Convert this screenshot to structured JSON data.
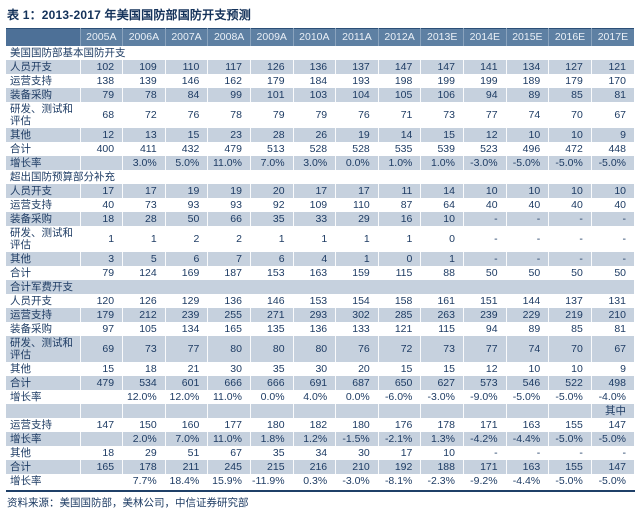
{
  "title": "表 1：2013-2017 年美国国防部国防开支预测",
  "source_note": "资料来源：美国国防部，美林公司，中信证券研究部",
  "colors": {
    "header_bg": "#5e80a3",
    "header_corner_bg": "#4d7097",
    "header_text": "#e9eff6",
    "stripe_bg": "#c6d1de",
    "body_text": "#1e3c64",
    "title_text": "#14325a",
    "rule": "#1f4068"
  },
  "table": {
    "columns": [
      "2005A",
      "2006A",
      "2007A",
      "2008A",
      "2009A",
      "2010A",
      "2011A",
      "2012A",
      "2013E",
      "2014E",
      "2015E",
      "2016E",
      "2017E"
    ],
    "rows": [
      {
        "kind": "section",
        "shaded": false,
        "label": "美国国防部基本国防开支",
        "values": []
      },
      {
        "kind": "data",
        "shaded": true,
        "label": "人员开支",
        "values": [
          "102",
          "109",
          "110",
          "117",
          "126",
          "136",
          "137",
          "147",
          "147",
          "141",
          "134",
          "127",
          "121"
        ]
      },
      {
        "kind": "data",
        "shaded": false,
        "label": "运营支持",
        "values": [
          "138",
          "139",
          "146",
          "162",
          "179",
          "184",
          "193",
          "198",
          "199",
          "199",
          "189",
          "179",
          "170"
        ]
      },
      {
        "kind": "data",
        "shaded": true,
        "label": "装备采购",
        "values": [
          "79",
          "78",
          "84",
          "99",
          "101",
          "103",
          "104",
          "105",
          "106",
          "94",
          "89",
          "85",
          "81"
        ]
      },
      {
        "kind": "data",
        "shaded": false,
        "label": "研发、测试和评估",
        "values": [
          "68",
          "72",
          "76",
          "78",
          "79",
          "79",
          "76",
          "71",
          "73",
          "77",
          "74",
          "70",
          "67"
        ]
      },
      {
        "kind": "data",
        "shaded": true,
        "label": "其他",
        "values": [
          "12",
          "13",
          "15",
          "23",
          "28",
          "26",
          "19",
          "14",
          "15",
          "12",
          "10",
          "10",
          "9"
        ]
      },
      {
        "kind": "data",
        "shaded": false,
        "label": "合计",
        "values": [
          "400",
          "411",
          "432",
          "479",
          "513",
          "528",
          "528",
          "535",
          "539",
          "523",
          "496",
          "472",
          "448"
        ]
      },
      {
        "kind": "data",
        "shaded": true,
        "label": "增长率",
        "values": [
          "",
          "3.0%",
          "5.0%",
          "11.0%",
          "7.0%",
          "3.0%",
          "0.0%",
          "1.0%",
          "1.0%",
          "-3.0%",
          "-5.0%",
          "-5.0%",
          "-5.0%"
        ]
      },
      {
        "kind": "section",
        "shaded": false,
        "label": "超出国防预算部分补充",
        "values": []
      },
      {
        "kind": "data",
        "shaded": true,
        "label": "人员开支",
        "values": [
          "17",
          "17",
          "19",
          "19",
          "20",
          "17",
          "17",
          "11",
          "14",
          "10",
          "10",
          "10",
          "10"
        ]
      },
      {
        "kind": "data",
        "shaded": false,
        "label": "运营支持",
        "values": [
          "40",
          "73",
          "93",
          "93",
          "92",
          "109",
          "110",
          "87",
          "64",
          "40",
          "40",
          "40",
          "40"
        ]
      },
      {
        "kind": "data",
        "shaded": true,
        "label": "装备采购",
        "values": [
          "18",
          "28",
          "50",
          "66",
          "35",
          "33",
          "29",
          "16",
          "10",
          "-",
          "-",
          "-",
          "-"
        ]
      },
      {
        "kind": "data",
        "shaded": false,
        "label": "研发、测试和评估",
        "values": [
          "1",
          "1",
          "2",
          "2",
          "1",
          "1",
          "1",
          "1",
          "0",
          "-",
          "-",
          "-",
          "-"
        ]
      },
      {
        "kind": "data",
        "shaded": true,
        "label": "其他",
        "values": [
          "3",
          "5",
          "6",
          "7",
          "6",
          "4",
          "1",
          "0",
          "1",
          "-",
          "-",
          "-",
          "-"
        ]
      },
      {
        "kind": "data",
        "shaded": false,
        "label": "合计",
        "values": [
          "79",
          "124",
          "169",
          "187",
          "153",
          "163",
          "159",
          "115",
          "88",
          "50",
          "50",
          "50",
          "50"
        ]
      },
      {
        "kind": "section",
        "shaded": true,
        "label": "合计军费开支",
        "values": []
      },
      {
        "kind": "data",
        "shaded": false,
        "label": "人员开支",
        "values": [
          "120",
          "126",
          "129",
          "136",
          "146",
          "153",
          "154",
          "158",
          "161",
          "151",
          "144",
          "137",
          "131"
        ]
      },
      {
        "kind": "data",
        "shaded": true,
        "label": "运营支持",
        "values": [
          "179",
          "212",
          "239",
          "255",
          "271",
          "293",
          "302",
          "285",
          "263",
          "239",
          "229",
          "219",
          "210"
        ]
      },
      {
        "kind": "data",
        "shaded": false,
        "label": "装备采购",
        "values": [
          "97",
          "105",
          "134",
          "165",
          "135",
          "136",
          "133",
          "121",
          "115",
          "94",
          "89",
          "85",
          "81"
        ]
      },
      {
        "kind": "data",
        "shaded": true,
        "label": "研发、测试和评估",
        "values": [
          "69",
          "73",
          "77",
          "80",
          "80",
          "80",
          "76",
          "72",
          "73",
          "77",
          "74",
          "70",
          "67"
        ]
      },
      {
        "kind": "data",
        "shaded": false,
        "label": "其他",
        "values": [
          "15",
          "18",
          "21",
          "30",
          "35",
          "30",
          "20",
          "15",
          "15",
          "12",
          "10",
          "10",
          "9"
        ]
      },
      {
        "kind": "data",
        "shaded": true,
        "label": "合计",
        "values": [
          "479",
          "534",
          "601",
          "666",
          "666",
          "691",
          "687",
          "650",
          "627",
          "573",
          "546",
          "522",
          "498"
        ]
      },
      {
        "kind": "data",
        "shaded": false,
        "label": "增长率",
        "values": [
          "",
          "12.0%",
          "12.0%",
          "11.0%",
          "0.0%",
          "4.0%",
          "0.0%",
          "-6.0%",
          "-3.0%",
          "-9.0%",
          "-5.0%",
          "-5.0%",
          "-4.0%"
        ]
      },
      {
        "kind": "annotation",
        "shaded": true,
        "label": "",
        "values": [
          "",
          "",
          "",
          "",
          "",
          "",
          "",
          "",
          "",
          "",
          "",
          "",
          "其中"
        ]
      },
      {
        "kind": "data",
        "shaded": false,
        "label": "运营支持",
        "values": [
          "147",
          "150",
          "160",
          "177",
          "180",
          "182",
          "180",
          "176",
          "178",
          "171",
          "163",
          "155",
          "147"
        ]
      },
      {
        "kind": "data",
        "shaded": true,
        "label": "增长率",
        "values": [
          "",
          "2.0%",
          "7.0%",
          "11.0%",
          "1.8%",
          "1.2%",
          "-1.5%",
          "-2.1%",
          "1.3%",
          "-4.2%",
          "-4.4%",
          "-5.0%",
          "-5.0%"
        ]
      },
      {
        "kind": "data",
        "shaded": false,
        "label": "其他",
        "values": [
          "18",
          "29",
          "51",
          "67",
          "35",
          "34",
          "30",
          "17",
          "10",
          "-",
          "-",
          "-",
          "-"
        ]
      },
      {
        "kind": "data",
        "shaded": true,
        "label": "合计",
        "values": [
          "165",
          "178",
          "211",
          "245",
          "215",
          "216",
          "210",
          "192",
          "188",
          "171",
          "163",
          "155",
          "147"
        ]
      },
      {
        "kind": "data",
        "shaded": false,
        "label": "增长率",
        "values": [
          "",
          "7.7%",
          "18.4%",
          "15.9%",
          "-11.9%",
          "0.3%",
          "-3.0%",
          "-8.1%",
          "-2.3%",
          "-9.2%",
          "-4.4%",
          "-5.0%",
          "-5.0%"
        ]
      }
    ]
  }
}
